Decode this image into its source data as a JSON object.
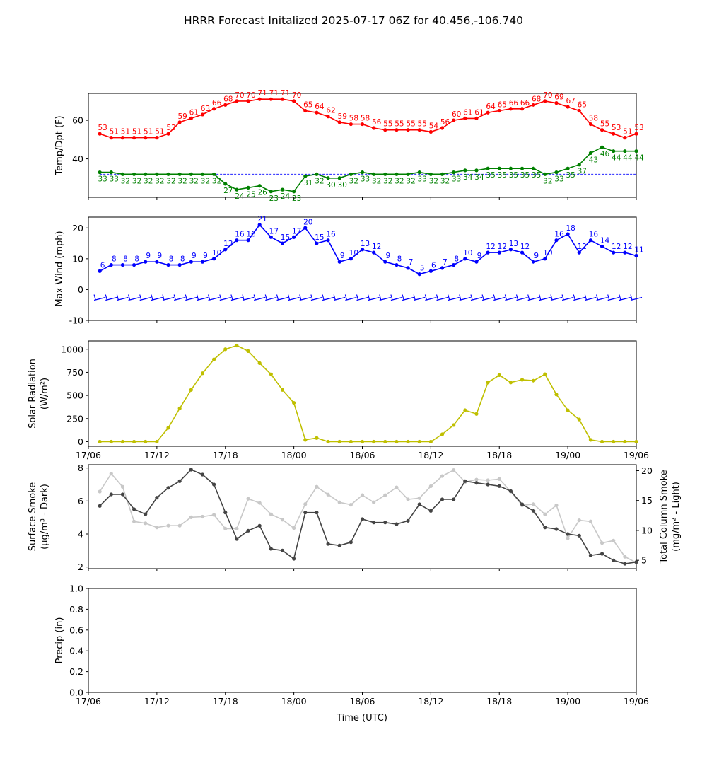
{
  "figure": {
    "title": "HRRR Forecast Initalized 2025-07-17 06Z for 40.456,-106.740"
  },
  "x_axis": {
    "label": "Time (UTC)",
    "unit": "hours since 17/06",
    "range": [
      0,
      48
    ],
    "ticks": [
      {
        "value": 0,
        "label": "17/06"
      },
      {
        "value": 6,
        "label": "17/12"
      },
      {
        "value": 12,
        "label": "17/18"
      },
      {
        "value": 18,
        "label": "18/00"
      },
      {
        "value": 24,
        "label": "18/06"
      },
      {
        "value": 30,
        "label": "18/12"
      },
      {
        "value": 36,
        "label": "18/18"
      },
      {
        "value": 42,
        "label": "19/00"
      },
      {
        "value": 48,
        "label": "19/06"
      }
    ]
  },
  "chart_data": [
    {
      "type": "line",
      "ylabel": "Temp/Dpt (F)",
      "ylim": [
        20,
        74
      ],
      "yticks": [
        40,
        60
      ],
      "x": [
        1,
        2,
        3,
        4,
        5,
        6,
        7,
        8,
        9,
        10,
        11,
        12,
        13,
        14,
        15,
        16,
        17,
        18,
        19,
        20,
        21,
        22,
        23,
        24,
        25,
        26,
        27,
        28,
        29,
        30,
        31,
        32,
        33,
        34,
        35,
        36,
        37,
        38,
        39,
        40,
        41,
        42,
        43,
        44,
        45,
        46,
        47,
        48
      ],
      "series": [
        {
          "name": "Temp",
          "color": "#ff0000",
          "values": [
            53,
            51,
            51,
            51,
            51,
            51,
            53,
            59,
            61,
            63,
            66,
            68,
            70,
            70,
            71,
            71,
            71,
            70,
            65,
            64,
            62,
            59,
            58,
            58,
            56,
            55,
            55,
            55,
            55,
            54,
            56,
            60,
            61,
            61,
            64,
            65,
            66,
            66,
            68,
            70,
            69,
            67,
            65,
            58,
            55,
            53,
            51,
            53
          ]
        },
        {
          "name": "Dewpoint",
          "color": "#008000",
          "values": [
            33,
            33,
            32,
            32,
            32,
            32,
            32,
            32,
            32,
            32,
            32,
            27,
            24,
            25,
            26,
            23,
            24,
            23,
            31,
            32,
            30,
            30,
            32,
            33,
            32,
            32,
            32,
            32,
            33,
            32,
            32,
            33,
            34,
            34,
            35,
            35,
            35,
            35,
            35,
            32,
            33,
            35,
            37,
            43,
            46,
            44,
            44,
            44
          ]
        }
      ],
      "reference_line": {
        "value": 32,
        "color": "#0000ff",
        "style": "dashed"
      }
    },
    {
      "type": "line",
      "ylabel": "Max Wind (mph)",
      "ylim": [
        -10,
        23.5
      ],
      "yticks": [
        -10,
        0,
        10,
        20
      ],
      "x": [
        1,
        2,
        3,
        4,
        5,
        6,
        7,
        8,
        9,
        10,
        11,
        12,
        13,
        14,
        15,
        16,
        17,
        18,
        19,
        20,
        21,
        22,
        23,
        24,
        25,
        26,
        27,
        28,
        29,
        30,
        31,
        32,
        33,
        34,
        35,
        36,
        37,
        38,
        39,
        40,
        41,
        42,
        43,
        44,
        45,
        46,
        47,
        48
      ],
      "series": [
        {
          "name": "Max Wind",
          "color": "#0000ff",
          "values": [
            6,
            8,
            8,
            8,
            9,
            9,
            8,
            8,
            9,
            9,
            10,
            13,
            16,
            16,
            21,
            17,
            15,
            17,
            20,
            15,
            16,
            9,
            10,
            13,
            12,
            9,
            8,
            7,
            5,
            6,
            7,
            8,
            10,
            9,
            12,
            12,
            13,
            12,
            9,
            10,
            16,
            18,
            12,
            16,
            14,
            12,
            12,
            11
          ]
        }
      ],
      "wind_barbs": {
        "y": -3,
        "color": "#0000ff"
      }
    },
    {
      "type": "line",
      "ylabel": "Solar Radiation (W/m²)",
      "ylim": [
        -50,
        1090
      ],
      "yticks": [
        0,
        250,
        500,
        750,
        1000
      ],
      "x": [
        1,
        2,
        3,
        4,
        5,
        6,
        7,
        8,
        9,
        10,
        11,
        12,
        13,
        14,
        15,
        16,
        17,
        18,
        19,
        20,
        21,
        22,
        23,
        24,
        25,
        26,
        27,
        28,
        29,
        30,
        31,
        32,
        33,
        34,
        35,
        36,
        37,
        38,
        39,
        40,
        41,
        42,
        43,
        44,
        45,
        46,
        47,
        48
      ],
      "series": [
        {
          "name": "Solar Radiation",
          "color": "#bfbf00",
          "values": [
            0,
            0,
            0,
            0,
            0,
            0,
            150,
            360,
            560,
            740,
            890,
            1000,
            1040,
            980,
            850,
            730,
            560,
            420,
            20,
            40,
            0,
            0,
            0,
            0,
            0,
            0,
            0,
            0,
            0,
            0,
            80,
            180,
            340,
            300,
            640,
            720,
            640,
            670,
            660,
            730,
            510,
            340,
            240,
            20,
            0,
            0,
            0,
            0
          ]
        }
      ]
    },
    {
      "type": "line",
      "ylabel": "Surface Smoke (μg/m³ - Dark)",
      "ylim": [
        1.9,
        8.2
      ],
      "yticks": [
        2,
        4,
        6,
        8
      ],
      "y2label": "Total Column Smoke (mg/m² - Light)",
      "y2lim": [
        3.6,
        21
      ],
      "y2ticks": [
        5,
        10,
        15,
        20
      ],
      "x": [
        1,
        2,
        3,
        4,
        5,
        6,
        7,
        8,
        9,
        10,
        11,
        12,
        13,
        14,
        15,
        16,
        17,
        18,
        19,
        20,
        21,
        22,
        23,
        24,
        25,
        26,
        27,
        28,
        29,
        30,
        31,
        32,
        33,
        34,
        35,
        36,
        37,
        38,
        39,
        40,
        41,
        42,
        43,
        44,
        45,
        46,
        47,
        48
      ],
      "series": [
        {
          "name": "Surface Smoke",
          "color": "#444444",
          "axis": "left",
          "values": [
            5.7,
            6.4,
            6.4,
            5.5,
            5.2,
            6.2,
            6.8,
            7.2,
            7.9,
            7.6,
            7.0,
            5.3,
            3.7,
            4.2,
            4.5,
            3.1,
            3.0,
            2.5,
            5.3,
            5.3,
            3.4,
            3.3,
            3.5,
            4.9,
            4.7,
            4.7,
            4.6,
            4.8,
            5.8,
            5.4,
            6.1,
            6.1,
            7.2,
            7.1,
            7.0,
            6.9,
            6.6,
            5.8,
            5.4,
            4.4,
            4.3,
            4.0,
            3.9,
            2.7,
            2.8,
            2.4,
            2.2,
            2.3
          ]
        },
        {
          "name": "Total Column Smoke",
          "color": "#c8c8c8",
          "axis": "right",
          "values": [
            16.5,
            19.5,
            17.3,
            11.5,
            11.2,
            10.5,
            10.8,
            10.8,
            12.2,
            12.3,
            12.6,
            10.3,
            10.3,
            15.3,
            14.6,
            12.7,
            11.8,
            10.4,
            14.4,
            17.3,
            16.0,
            14.7,
            14.3,
            15.9,
            14.7,
            15.9,
            17.2,
            15.2,
            15.4,
            17.4,
            19.1,
            20.1,
            18.1,
            18.5,
            18.4,
            18.6,
            16.5,
            14.2,
            14.4,
            12.7,
            14.2,
            8.7,
            11.7,
            11.5,
            7.9,
            8.3,
            5.6,
            4.6
          ]
        }
      ]
    },
    {
      "type": "line",
      "ylabel": "Precip (in)",
      "ylim": [
        0,
        1
      ],
      "yticks": [
        0.0,
        0.2,
        0.4,
        0.6,
        0.8,
        1.0
      ],
      "ytick_labels": [
        "0.0",
        "0.2",
        "0.4",
        "0.6",
        "0.8",
        "1.0"
      ],
      "x": [],
      "series": []
    }
  ]
}
